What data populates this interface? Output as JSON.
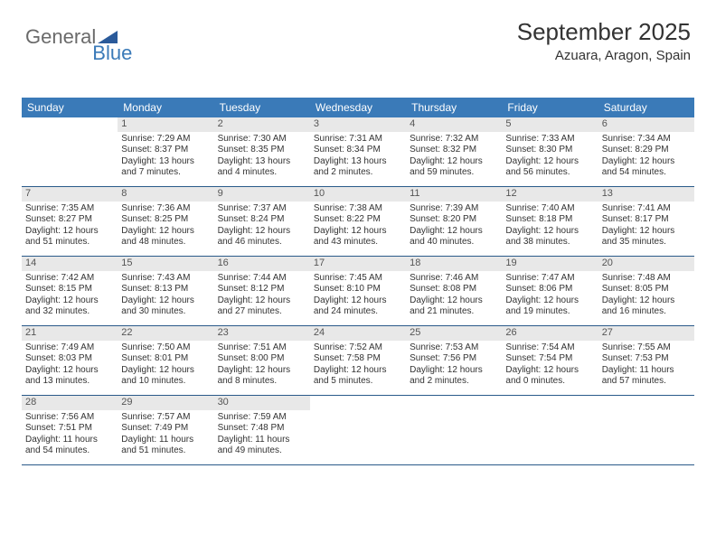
{
  "brand": {
    "word1": "General",
    "word2": "Blue"
  },
  "header": {
    "month": "September 2025",
    "location": "Azuara, Aragon, Spain"
  },
  "colors": {
    "header_bg": "#3a7ab8",
    "header_text": "#ffffff",
    "daynum_bg": "#e8e8e8",
    "week_border": "#2a5a8a",
    "text": "#333333",
    "logo_gray": "#6a6a6a",
    "logo_blue": "#3a7ab8"
  },
  "day_names": [
    "Sunday",
    "Monday",
    "Tuesday",
    "Wednesday",
    "Thursday",
    "Friday",
    "Saturday"
  ],
  "weeks": [
    [
      {
        "blank": true
      },
      {
        "n": "1",
        "l1": "Sunrise: 7:29 AM",
        "l2": "Sunset: 8:37 PM",
        "l3": "Daylight: 13 hours",
        "l4": "and 7 minutes."
      },
      {
        "n": "2",
        "l1": "Sunrise: 7:30 AM",
        "l2": "Sunset: 8:35 PM",
        "l3": "Daylight: 13 hours",
        "l4": "and 4 minutes."
      },
      {
        "n": "3",
        "l1": "Sunrise: 7:31 AM",
        "l2": "Sunset: 8:34 PM",
        "l3": "Daylight: 13 hours",
        "l4": "and 2 minutes."
      },
      {
        "n": "4",
        "l1": "Sunrise: 7:32 AM",
        "l2": "Sunset: 8:32 PM",
        "l3": "Daylight: 12 hours",
        "l4": "and 59 minutes."
      },
      {
        "n": "5",
        "l1": "Sunrise: 7:33 AM",
        "l2": "Sunset: 8:30 PM",
        "l3": "Daylight: 12 hours",
        "l4": "and 56 minutes."
      },
      {
        "n": "6",
        "l1": "Sunrise: 7:34 AM",
        "l2": "Sunset: 8:29 PM",
        "l3": "Daylight: 12 hours",
        "l4": "and 54 minutes."
      }
    ],
    [
      {
        "n": "7",
        "l1": "Sunrise: 7:35 AM",
        "l2": "Sunset: 8:27 PM",
        "l3": "Daylight: 12 hours",
        "l4": "and 51 minutes."
      },
      {
        "n": "8",
        "l1": "Sunrise: 7:36 AM",
        "l2": "Sunset: 8:25 PM",
        "l3": "Daylight: 12 hours",
        "l4": "and 48 minutes."
      },
      {
        "n": "9",
        "l1": "Sunrise: 7:37 AM",
        "l2": "Sunset: 8:24 PM",
        "l3": "Daylight: 12 hours",
        "l4": "and 46 minutes."
      },
      {
        "n": "10",
        "l1": "Sunrise: 7:38 AM",
        "l2": "Sunset: 8:22 PM",
        "l3": "Daylight: 12 hours",
        "l4": "and 43 minutes."
      },
      {
        "n": "11",
        "l1": "Sunrise: 7:39 AM",
        "l2": "Sunset: 8:20 PM",
        "l3": "Daylight: 12 hours",
        "l4": "and 40 minutes."
      },
      {
        "n": "12",
        "l1": "Sunrise: 7:40 AM",
        "l2": "Sunset: 8:18 PM",
        "l3": "Daylight: 12 hours",
        "l4": "and 38 minutes."
      },
      {
        "n": "13",
        "l1": "Sunrise: 7:41 AM",
        "l2": "Sunset: 8:17 PM",
        "l3": "Daylight: 12 hours",
        "l4": "and 35 minutes."
      }
    ],
    [
      {
        "n": "14",
        "l1": "Sunrise: 7:42 AM",
        "l2": "Sunset: 8:15 PM",
        "l3": "Daylight: 12 hours",
        "l4": "and 32 minutes."
      },
      {
        "n": "15",
        "l1": "Sunrise: 7:43 AM",
        "l2": "Sunset: 8:13 PM",
        "l3": "Daylight: 12 hours",
        "l4": "and 30 minutes."
      },
      {
        "n": "16",
        "l1": "Sunrise: 7:44 AM",
        "l2": "Sunset: 8:12 PM",
        "l3": "Daylight: 12 hours",
        "l4": "and 27 minutes."
      },
      {
        "n": "17",
        "l1": "Sunrise: 7:45 AM",
        "l2": "Sunset: 8:10 PM",
        "l3": "Daylight: 12 hours",
        "l4": "and 24 minutes."
      },
      {
        "n": "18",
        "l1": "Sunrise: 7:46 AM",
        "l2": "Sunset: 8:08 PM",
        "l3": "Daylight: 12 hours",
        "l4": "and 21 minutes."
      },
      {
        "n": "19",
        "l1": "Sunrise: 7:47 AM",
        "l2": "Sunset: 8:06 PM",
        "l3": "Daylight: 12 hours",
        "l4": "and 19 minutes."
      },
      {
        "n": "20",
        "l1": "Sunrise: 7:48 AM",
        "l2": "Sunset: 8:05 PM",
        "l3": "Daylight: 12 hours",
        "l4": "and 16 minutes."
      }
    ],
    [
      {
        "n": "21",
        "l1": "Sunrise: 7:49 AM",
        "l2": "Sunset: 8:03 PM",
        "l3": "Daylight: 12 hours",
        "l4": "and 13 minutes."
      },
      {
        "n": "22",
        "l1": "Sunrise: 7:50 AM",
        "l2": "Sunset: 8:01 PM",
        "l3": "Daylight: 12 hours",
        "l4": "and 10 minutes."
      },
      {
        "n": "23",
        "l1": "Sunrise: 7:51 AM",
        "l2": "Sunset: 8:00 PM",
        "l3": "Daylight: 12 hours",
        "l4": "and 8 minutes."
      },
      {
        "n": "24",
        "l1": "Sunrise: 7:52 AM",
        "l2": "Sunset: 7:58 PM",
        "l3": "Daylight: 12 hours",
        "l4": "and 5 minutes."
      },
      {
        "n": "25",
        "l1": "Sunrise: 7:53 AM",
        "l2": "Sunset: 7:56 PM",
        "l3": "Daylight: 12 hours",
        "l4": "and 2 minutes."
      },
      {
        "n": "26",
        "l1": "Sunrise: 7:54 AM",
        "l2": "Sunset: 7:54 PM",
        "l3": "Daylight: 12 hours",
        "l4": "and 0 minutes."
      },
      {
        "n": "27",
        "l1": "Sunrise: 7:55 AM",
        "l2": "Sunset: 7:53 PM",
        "l3": "Daylight: 11 hours",
        "l4": "and 57 minutes."
      }
    ],
    [
      {
        "n": "28",
        "l1": "Sunrise: 7:56 AM",
        "l2": "Sunset: 7:51 PM",
        "l3": "Daylight: 11 hours",
        "l4": "and 54 minutes."
      },
      {
        "n": "29",
        "l1": "Sunrise: 7:57 AM",
        "l2": "Sunset: 7:49 PM",
        "l3": "Daylight: 11 hours",
        "l4": "and 51 minutes."
      },
      {
        "n": "30",
        "l1": "Sunrise: 7:59 AM",
        "l2": "Sunset: 7:48 PM",
        "l3": "Daylight: 11 hours",
        "l4": "and 49 minutes."
      },
      {
        "blank": true
      },
      {
        "blank": true
      },
      {
        "blank": true
      },
      {
        "blank": true
      }
    ]
  ]
}
